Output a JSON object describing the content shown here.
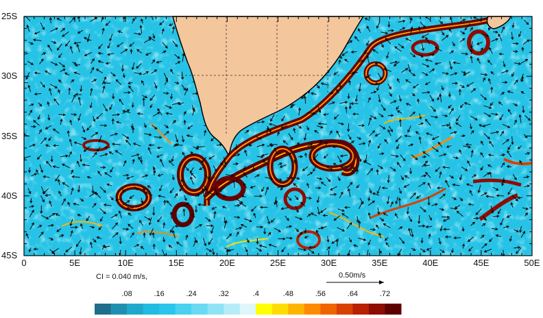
{
  "map": {
    "lon_range": [
      0,
      50
    ],
    "lat_range": [
      -45,
      -25
    ],
    "lat_labels": [
      "25S",
      "30S",
      "35S",
      "40S",
      "45S"
    ],
    "lon_labels": [
      "0",
      "5E",
      "10E",
      "15E",
      "20E",
      "25E",
      "30E",
      "35E",
      "40E",
      "45E",
      "50E"
    ],
    "land_color": "#f4c69c",
    "ocean_color": "#27c3e6",
    "grid_on_land": true
  },
  "legend": {
    "contour_interval": "CI = 0.040 m/s,",
    "reference_vector": "0.50m/s",
    "colorbar_ticks": [
      ".08",
      ".16",
      ".24",
      ".32",
      ".4",
      ".48",
      ".56",
      ".64",
      ".72"
    ],
    "colorbar_colors": [
      "#1d6f8a",
      "#1f8fb0",
      "#1ea8cc",
      "#1fbbe0",
      "#27c6ea",
      "#48d2f0",
      "#6adaf3",
      "#8fe3f6",
      "#b6ecf8",
      "#dff6fb",
      "#ffff00",
      "#ffdd00",
      "#ffb400",
      "#ff8a00",
      "#f06400",
      "#d94000",
      "#b82000",
      "#8e0c00",
      "#5e0000"
    ]
  }
}
